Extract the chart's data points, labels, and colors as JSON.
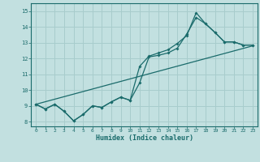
{
  "xlabel": "Humidex (Indice chaleur)",
  "bg_color": "#c2e0e0",
  "grid_color": "#a8cccc",
  "line_color": "#1a6b6b",
  "xlim": [
    -0.5,
    23.5
  ],
  "ylim": [
    7.7,
    15.5
  ],
  "xticks": [
    0,
    1,
    2,
    3,
    4,
    5,
    6,
    7,
    8,
    9,
    10,
    11,
    12,
    13,
    14,
    15,
    16,
    17,
    18,
    19,
    20,
    21,
    22,
    23
  ],
  "yticks": [
    8,
    9,
    10,
    11,
    12,
    13,
    14,
    15
  ],
  "line1_x": [
    0,
    1,
    2,
    3,
    4,
    5,
    6,
    7,
    8,
    9,
    10,
    11,
    12,
    13,
    14,
    15,
    16,
    17,
    18,
    19,
    20,
    21,
    22,
    23
  ],
  "line1_y": [
    9.1,
    8.8,
    9.1,
    8.65,
    8.05,
    8.45,
    9.0,
    8.9,
    9.25,
    9.55,
    9.35,
    10.45,
    12.1,
    12.2,
    12.35,
    12.65,
    13.55,
    14.6,
    14.2,
    13.65,
    13.05,
    13.05,
    12.85,
    12.85
  ],
  "line2_x": [
    0,
    1,
    2,
    3,
    4,
    5,
    6,
    7,
    8,
    9,
    10,
    11,
    12,
    13,
    14,
    15,
    16,
    17,
    18,
    19,
    20,
    21,
    22,
    23
  ],
  "line2_y": [
    9.1,
    8.8,
    9.1,
    8.65,
    8.05,
    8.45,
    9.0,
    8.9,
    9.25,
    9.55,
    9.35,
    11.5,
    12.15,
    12.35,
    12.55,
    12.95,
    13.45,
    14.9,
    14.2,
    13.65,
    13.05,
    13.05,
    12.85,
    12.85
  ],
  "line3_x": [
    0,
    23
  ],
  "line3_y": [
    9.1,
    12.8
  ]
}
